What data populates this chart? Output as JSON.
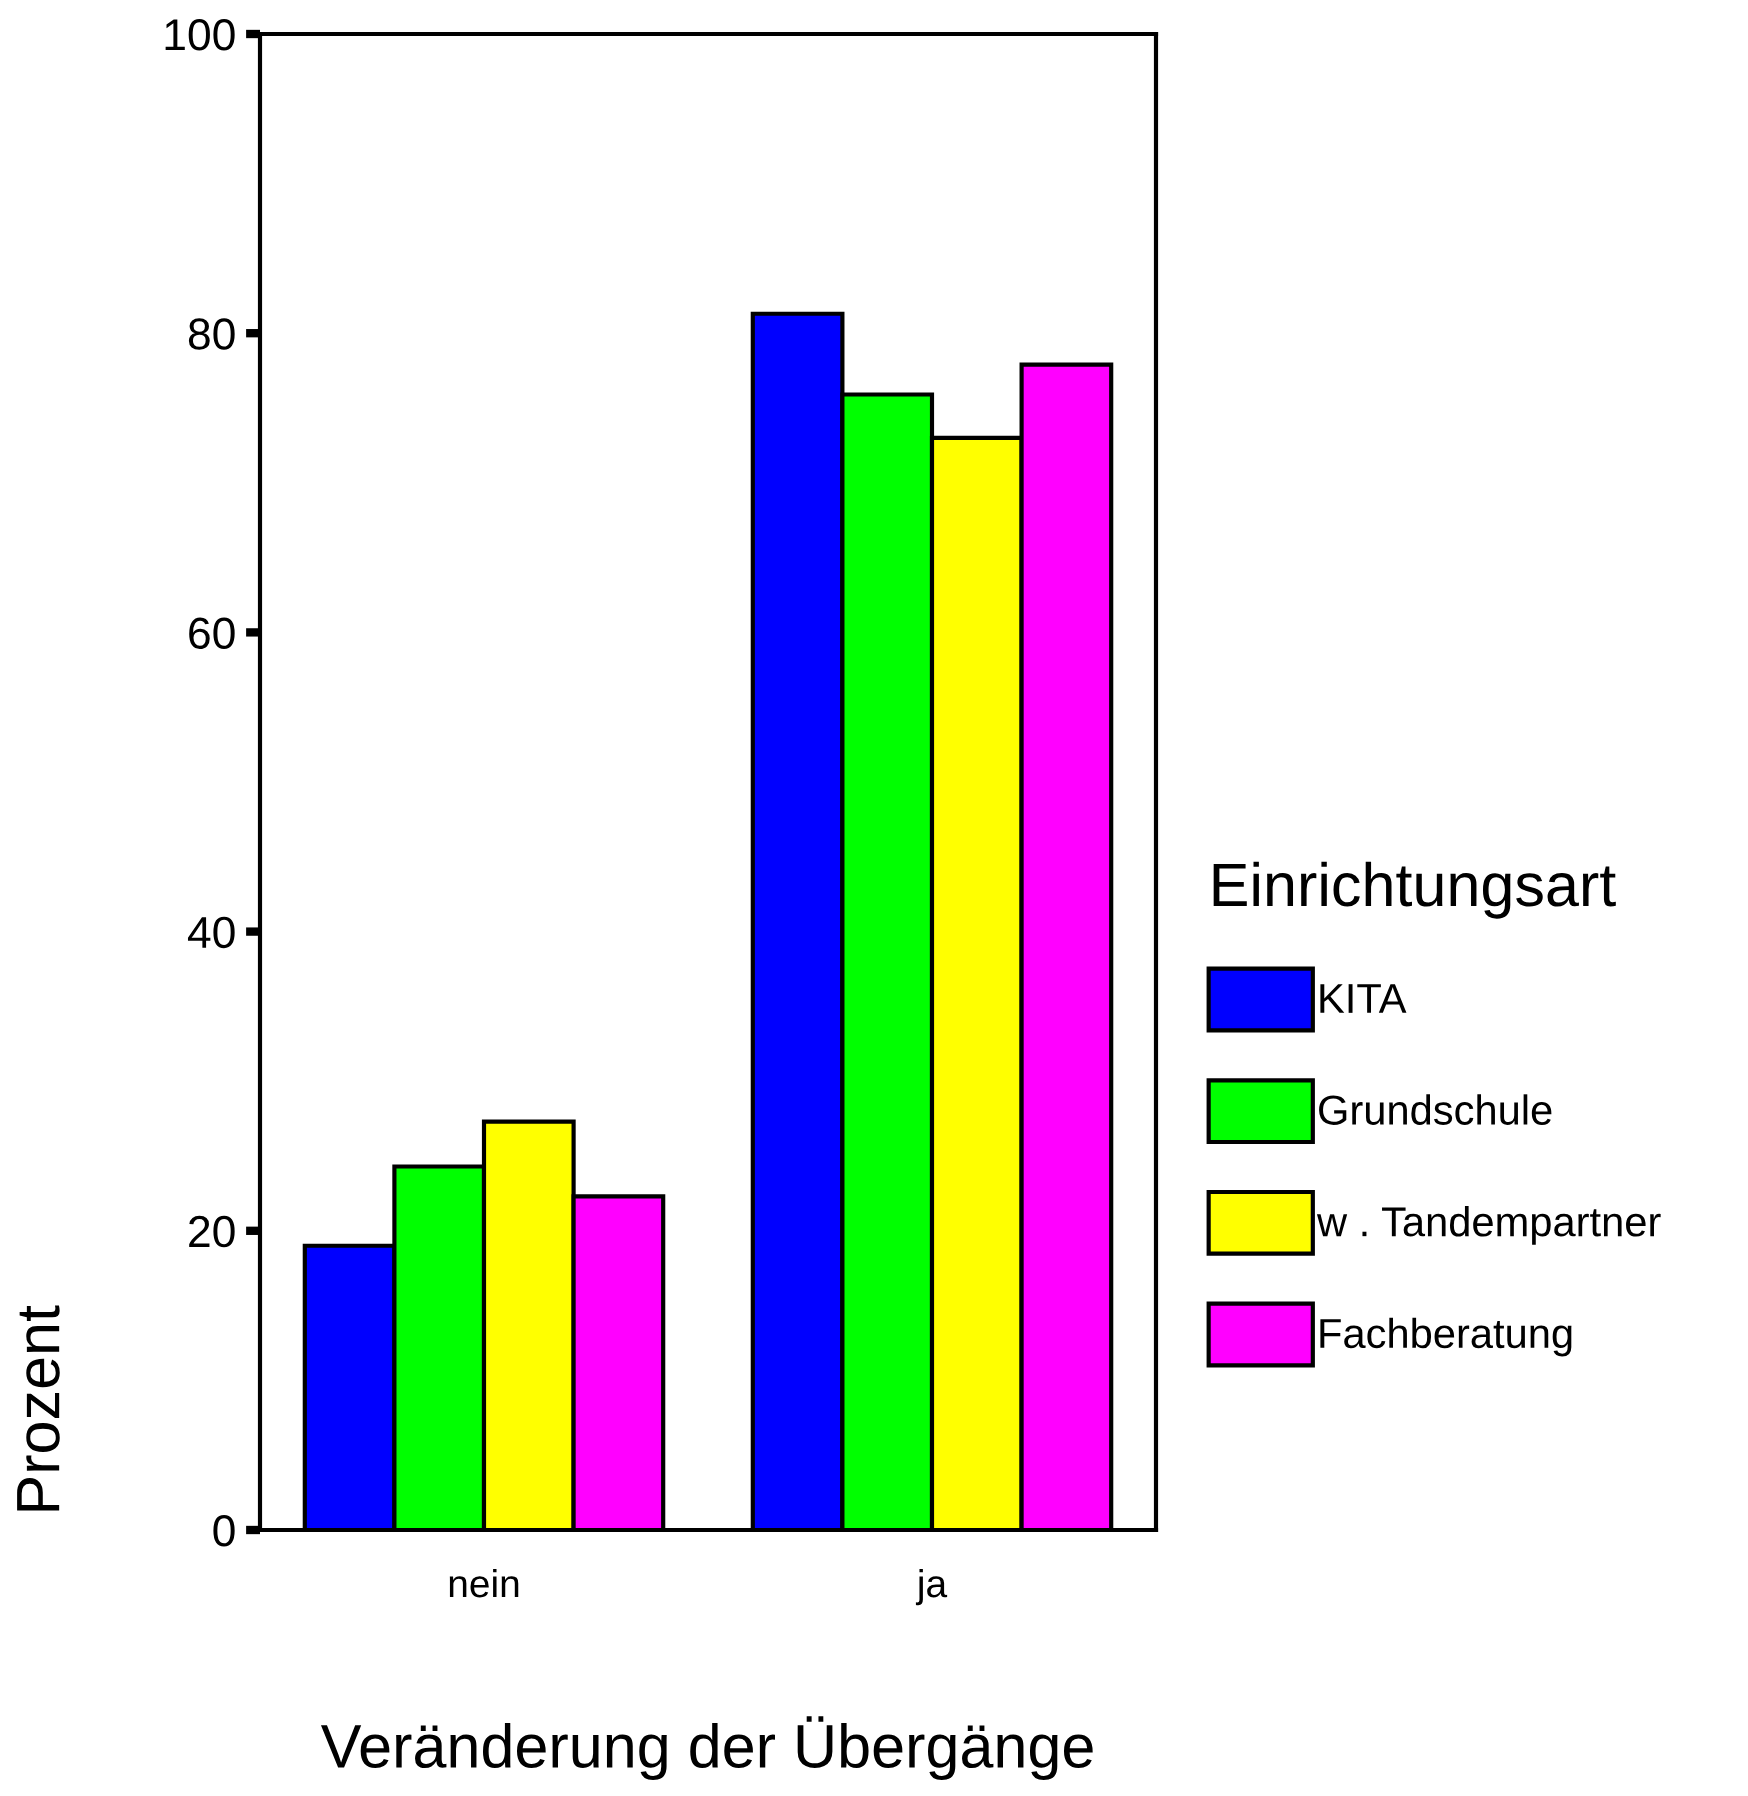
{
  "chart_data": {
    "type": "bar",
    "xlabel": "Veränderung der Übergänge",
    "ylabel": "Prozent",
    "legend_title": "Einrichtungsart",
    "categories": [
      "nein",
      "ja"
    ],
    "series": [
      {
        "name": "KITA",
        "color": "#0000ff",
        "values": [
          19.0,
          81.3
        ]
      },
      {
        "name": "Grundschule",
        "color": "#00ff00",
        "values": [
          24.3,
          75.9
        ]
      },
      {
        "name": "w . Tandempartner",
        "color": "#ffff00",
        "values": [
          27.3,
          73.0
        ]
      },
      {
        "name": "Fachberatung",
        "color": "#ff00ff",
        "values": [
          22.3,
          77.9
        ]
      }
    ],
    "ylim": [
      0,
      100
    ],
    "yticks": [
      0,
      20,
      40,
      60,
      80,
      100
    ],
    "grid": false,
    "legend": "right"
  }
}
